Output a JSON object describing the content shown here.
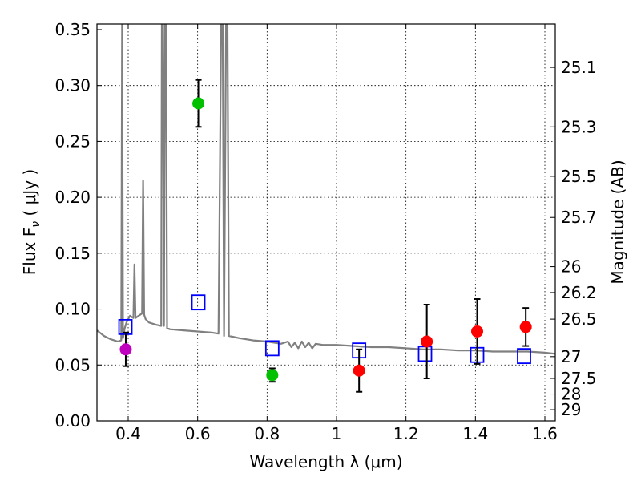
{
  "chart_data": {
    "type": "scatter",
    "xlabel": "Wavelength  λ (μm)",
    "ylabel": "Flux  F",
    "ylabel_sub": "ν",
    "ylabel_unit": "  ( μJy )",
    "y2label": "Magnitude (AB)",
    "xlim": [
      0.31,
      1.63
    ],
    "ylim": [
      0.0,
      0.355
    ],
    "grid": true,
    "x_ticks": [
      0.4,
      0.6,
      0.8,
      1.0,
      1.2,
      1.4,
      1.6
    ],
    "x_tick_labels": [
      "0.4",
      "0.6",
      "0.8",
      "1",
      "1.2",
      "1.4",
      "1.6"
    ],
    "y_ticks": [
      0.0,
      0.05,
      0.1,
      0.15,
      0.2,
      0.25,
      0.3,
      0.35
    ],
    "y_tick_labels": [
      "0.00",
      "0.05",
      "0.10",
      "0.15",
      "0.20",
      "0.25",
      "0.30",
      "0.35"
    ],
    "y2_ticks": [
      {
        "label": "25.1",
        "flux": 0.3162
      },
      {
        "label": "25.3",
        "flux": 0.263
      },
      {
        "label": "25.5",
        "flux": 0.2188
      },
      {
        "label": "25.7",
        "flux": 0.182
      },
      {
        "label": "26",
        "flux": 0.138
      },
      {
        "label": "26.2",
        "flux": 0.1148
      },
      {
        "label": "26.5",
        "flux": 0.091
      },
      {
        "label": "27",
        "flux": 0.0575
      },
      {
        "label": "27.5",
        "flux": 0.038
      },
      {
        "label": "28",
        "flux": 0.024
      },
      {
        "label": "29",
        "flux": 0.01
      }
    ],
    "series": [
      {
        "name": "model_spectrum",
        "kind": "line",
        "color": "#808080",
        "points": [
          [
            0.31,
            0.081
          ],
          [
            0.33,
            0.076
          ],
          [
            0.35,
            0.073
          ],
          [
            0.37,
            0.071
          ],
          [
            0.38,
            0.072
          ],
          [
            0.3825,
            0.36
          ],
          [
            0.385,
            0.074
          ],
          [
            0.39,
            0.083
          ],
          [
            0.395,
            0.088
          ],
          [
            0.4,
            0.091
          ],
          [
            0.405,
            0.094
          ],
          [
            0.41,
            0.093
          ],
          [
            0.415,
            0.092
          ],
          [
            0.418,
            0.14
          ],
          [
            0.421,
            0.092
          ],
          [
            0.43,
            0.094
          ],
          [
            0.44,
            0.096
          ],
          [
            0.443,
            0.215
          ],
          [
            0.446,
            0.095
          ],
          [
            0.45,
            0.091
          ],
          [
            0.46,
            0.088
          ],
          [
            0.48,
            0.086
          ],
          [
            0.495,
            0.085
          ],
          [
            0.497,
            0.36
          ],
          [
            0.5,
            0.36
          ],
          [
            0.503,
            0.085
          ],
          [
            0.506,
            0.36
          ],
          [
            0.509,
            0.36
          ],
          [
            0.512,
            0.083
          ],
          [
            0.52,
            0.082
          ],
          [
            0.56,
            0.081
          ],
          [
            0.6,
            0.08
          ],
          [
            0.64,
            0.079
          ],
          [
            0.66,
            0.078
          ],
          [
            0.668,
            0.36
          ],
          [
            0.672,
            0.36
          ],
          [
            0.676,
            0.076
          ],
          [
            0.682,
            0.36
          ],
          [
            0.686,
            0.36
          ],
          [
            0.69,
            0.076
          ],
          [
            0.72,
            0.074
          ],
          [
            0.76,
            0.072
          ],
          [
            0.8,
            0.071
          ],
          [
            0.84,
            0.069
          ],
          [
            0.86,
            0.071
          ],
          [
            0.87,
            0.066
          ],
          [
            0.88,
            0.07
          ],
          [
            0.89,
            0.065
          ],
          [
            0.9,
            0.071
          ],
          [
            0.91,
            0.066
          ],
          [
            0.92,
            0.07
          ],
          [
            0.93,
            0.065
          ],
          [
            0.94,
            0.069
          ],
          [
            0.96,
            0.068
          ],
          [
            1.0,
            0.068
          ],
          [
            1.05,
            0.067
          ],
          [
            1.1,
            0.066
          ],
          [
            1.15,
            0.066
          ],
          [
            1.2,
            0.065
          ],
          [
            1.25,
            0.064
          ],
          [
            1.3,
            0.064
          ],
          [
            1.35,
            0.063
          ],
          [
            1.4,
            0.063
          ],
          [
            1.45,
            0.062
          ],
          [
            1.5,
            0.062
          ],
          [
            1.55,
            0.062
          ],
          [
            1.6,
            0.061
          ],
          [
            1.63,
            0.06
          ]
        ]
      },
      {
        "name": "model_photometry",
        "kind": "open_square",
        "color": "#0000ff",
        "points": [
          [
            0.392,
            0.084
          ],
          [
            0.602,
            0.106
          ],
          [
            0.815,
            0.065
          ],
          [
            1.065,
            0.063
          ],
          [
            1.255,
            0.06
          ],
          [
            1.405,
            0.059
          ],
          [
            1.54,
            0.058
          ]
        ]
      },
      {
        "name": "observed_blue",
        "kind": "filled_circle",
        "color": "#bf00bf",
        "points": [
          {
            "x": 0.393,
            "y": 0.064,
            "err": 0.015
          }
        ]
      },
      {
        "name": "observed_optical",
        "kind": "filled_circle",
        "color": "#00c000",
        "points": [
          {
            "x": 0.602,
            "y": 0.284,
            "err": 0.021
          },
          {
            "x": 0.815,
            "y": 0.041,
            "err": 0.006
          }
        ]
      },
      {
        "name": "observed_infrared",
        "kind": "filled_circle",
        "color": "#ff0000",
        "points": [
          {
            "x": 1.065,
            "y": 0.045,
            "err": 0.019
          },
          {
            "x": 1.26,
            "y": 0.071,
            "err": 0.033
          },
          {
            "x": 1.405,
            "y": 0.08,
            "err": 0.029
          },
          {
            "x": 1.545,
            "y": 0.084,
            "err": 0.017
          }
        ]
      }
    ]
  }
}
